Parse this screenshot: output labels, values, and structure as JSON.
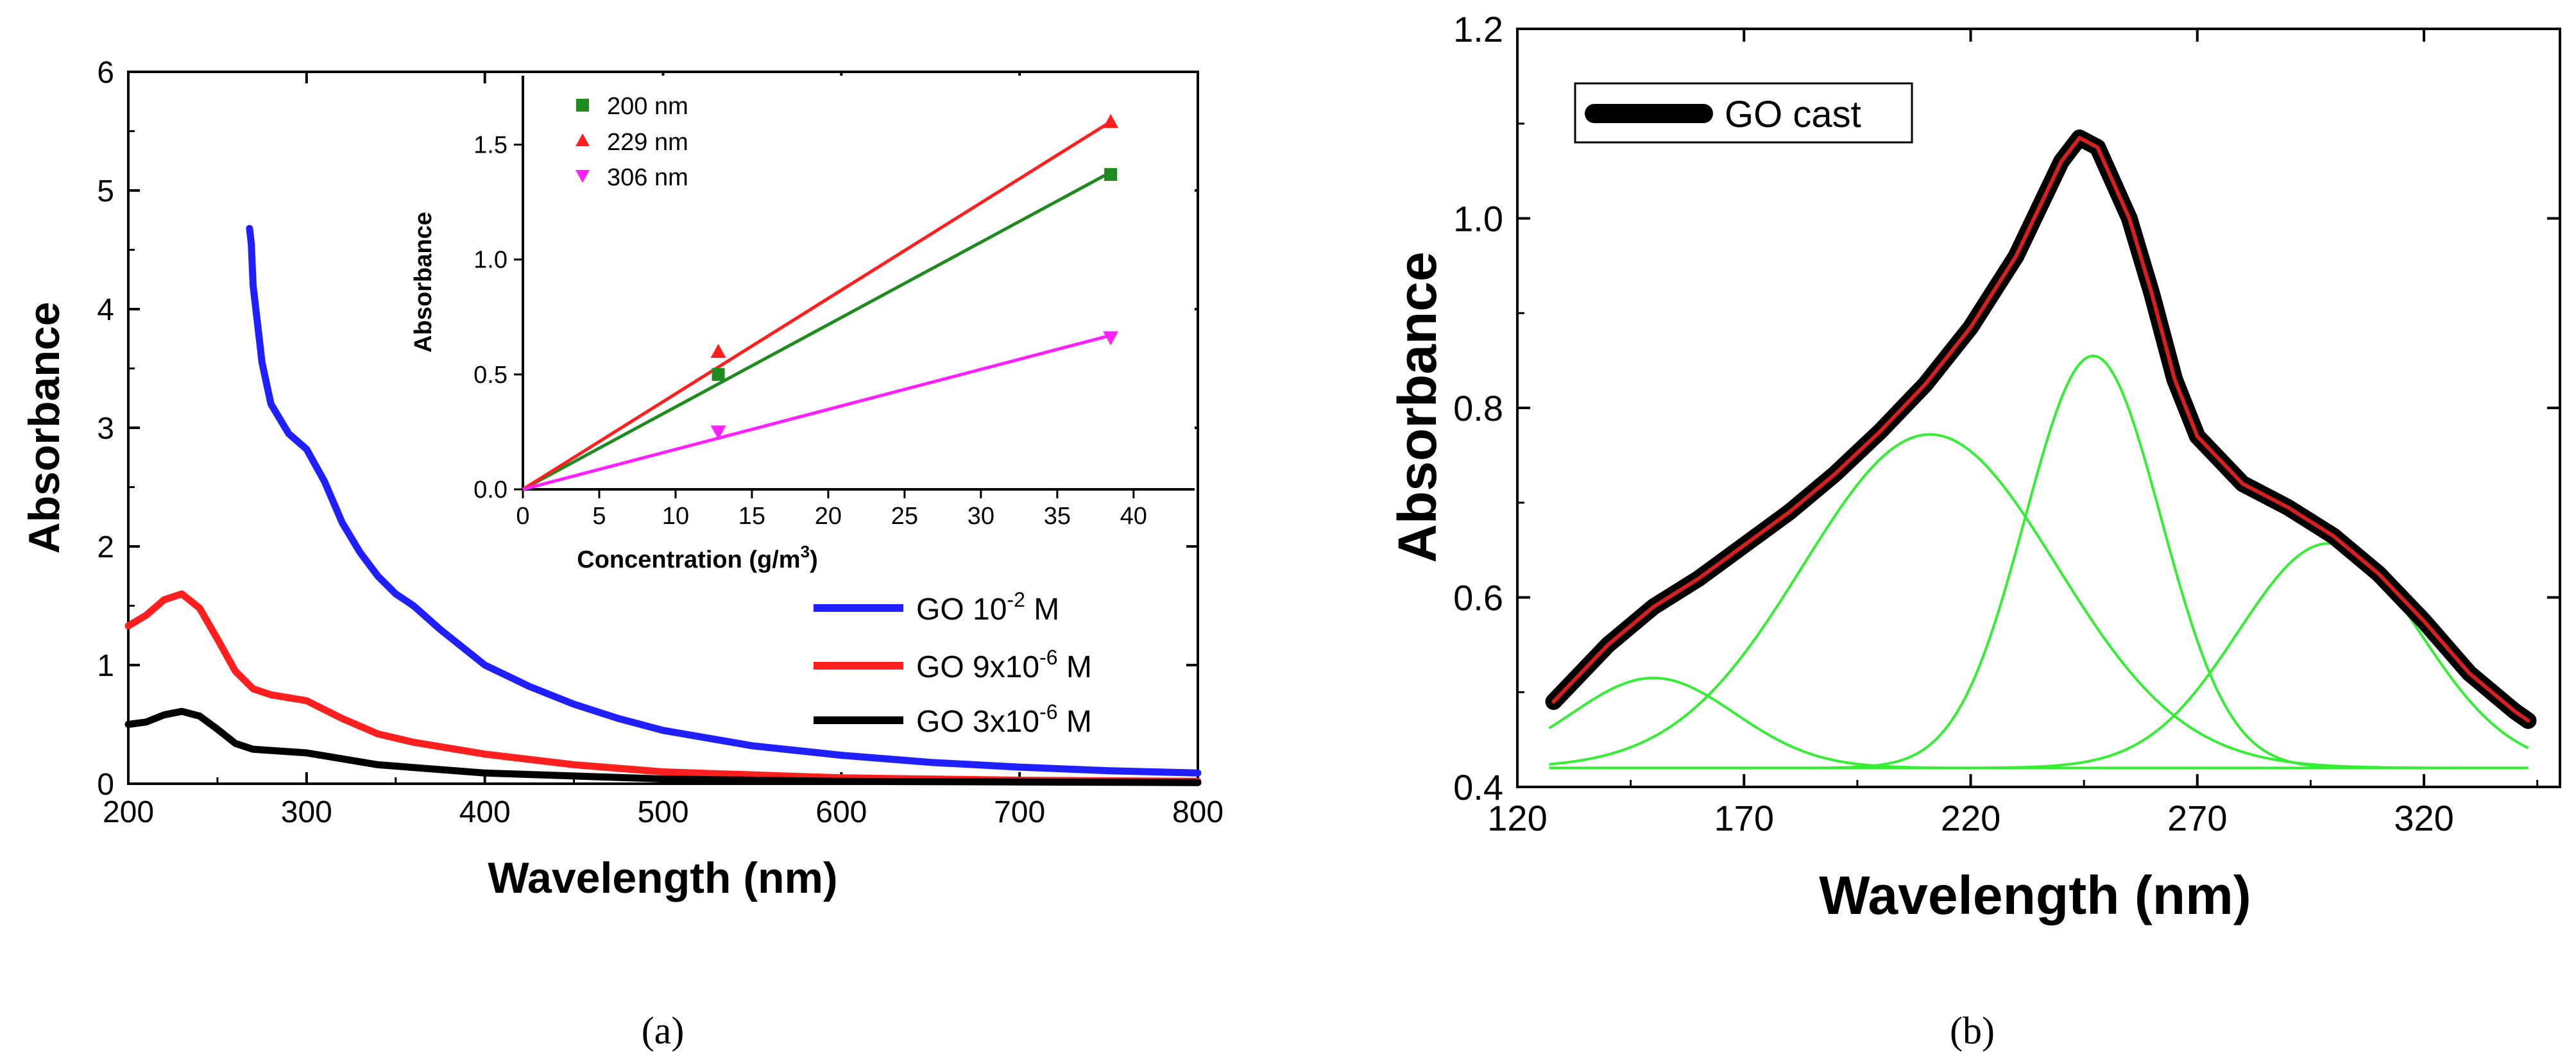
{
  "chart_data": [
    {
      "type": "line",
      "panel_label": "(a)",
      "xlabel": "Wavelength (nm)",
      "ylabel": "Absorbance",
      "xlim": [
        200,
        800
      ],
      "ylim": [
        0,
        6
      ],
      "xticks": [
        200,
        300,
        400,
        500,
        600,
        700,
        800
      ],
      "yticks": [
        0,
        1,
        2,
        3,
        4,
        5,
        6
      ],
      "legend_position": "middle-right",
      "series": [
        {
          "name": "GO 10-2 M",
          "legend": {
            "prefix": "GO 10",
            "sup": "-2",
            "suffix": " M"
          },
          "color": "#1f1fff",
          "points": [
            [
              268,
              4.68
            ],
            [
              269,
              4.55
            ],
            [
              270,
              4.2
            ],
            [
              275,
              3.55
            ],
            [
              280,
              3.2
            ],
            [
              290,
              2.95
            ],
            [
              300,
              2.82
            ],
            [
              310,
              2.55
            ],
            [
              320,
              2.2
            ],
            [
              330,
              1.95
            ],
            [
              340,
              1.75
            ],
            [
              350,
              1.6
            ],
            [
              360,
              1.5
            ],
            [
              375,
              1.3
            ],
            [
              400,
              1.0
            ],
            [
              425,
              0.82
            ],
            [
              450,
              0.67
            ],
            [
              475,
              0.55
            ],
            [
              500,
              0.45
            ],
            [
              550,
              0.32
            ],
            [
              600,
              0.24
            ],
            [
              650,
              0.18
            ],
            [
              700,
              0.14
            ],
            [
              750,
              0.11
            ],
            [
              800,
              0.09
            ]
          ]
        },
        {
          "name": "GO 9x10-6 M",
          "legend": {
            "prefix": "GO  9x10",
            "sup": "-6",
            "suffix": " M"
          },
          "color": "#ff1f1f",
          "points": [
            [
              200,
              1.33
            ],
            [
              210,
              1.42
            ],
            [
              220,
              1.55
            ],
            [
              230,
              1.6
            ],
            [
              240,
              1.48
            ],
            [
              250,
              1.22
            ],
            [
              260,
              0.95
            ],
            [
              270,
              0.8
            ],
            [
              280,
              0.75
            ],
            [
              300,
              0.7
            ],
            [
              320,
              0.55
            ],
            [
              340,
              0.42
            ],
            [
              360,
              0.35
            ],
            [
              400,
              0.25
            ],
            [
              450,
              0.16
            ],
            [
              500,
              0.1
            ],
            [
              600,
              0.05
            ],
            [
              700,
              0.03
            ],
            [
              800,
              0.02
            ]
          ]
        },
        {
          "name": "GO 3x10-6 M",
          "legend": {
            "prefix": "GO  3x10",
            "sup": "-6",
            "suffix": " M"
          },
          "color": "#000000",
          "points": [
            [
              200,
              0.5
            ],
            [
              210,
              0.52
            ],
            [
              220,
              0.58
            ],
            [
              230,
              0.61
            ],
            [
              240,
              0.57
            ],
            [
              250,
              0.46
            ],
            [
              260,
              0.34
            ],
            [
              270,
              0.29
            ],
            [
              300,
              0.26
            ],
            [
              340,
              0.16
            ],
            [
              400,
              0.09
            ],
            [
              500,
              0.04
            ],
            [
              600,
              0.02
            ],
            [
              800,
              0.01
            ]
          ]
        }
      ],
      "inset": {
        "type": "scatter",
        "xlabel": "Concentration (g/m",
        "xlabel_sup": "3",
        "xlabel_end": ")",
        "ylabel": "Absorbance",
        "xlim": [
          0,
          44
        ],
        "ylim": [
          0,
          1.8
        ],
        "xticks": [
          0,
          5,
          10,
          15,
          20,
          25,
          30,
          35,
          40
        ],
        "yticks": [
          0.0,
          0.5,
          1.0,
          1.5
        ],
        "series": [
          {
            "name": "200 nm",
            "marker": "square",
            "color": "#1f8a1f",
            "points": [
              [
                12.8,
                0.5
              ],
              [
                38.5,
                1.37
              ]
            ],
            "fit": [
              [
                0,
                0
              ],
              [
                38.5,
                1.38
              ]
            ]
          },
          {
            "name": "229 nm",
            "marker": "triangle-up",
            "color": "#ff1f1f",
            "points": [
              [
                12.8,
                0.6
              ],
              [
                38.5,
                1.6
              ]
            ],
            "fit": [
              [
                0,
                0
              ],
              [
                38.5,
                1.6
              ]
            ]
          },
          {
            "name": "306 nm",
            "marker": "triangle-down",
            "color": "#ff1fff",
            "points": [
              [
                12.8,
                0.25
              ],
              [
                38.5,
                0.66
              ]
            ],
            "fit": [
              [
                0,
                0
              ],
              [
                38.5,
                0.67
              ]
            ]
          }
        ]
      }
    },
    {
      "type": "line",
      "panel_label": "(b)",
      "xlabel": "Wavelength (nm)",
      "ylabel": "Absorbance",
      "xlim": [
        120,
        350
      ],
      "ylim": [
        0.4,
        1.2
      ],
      "xticks": [
        120,
        170,
        220,
        270,
        320
      ],
      "yticks": [
        "0.4",
        "0.6",
        "0.8",
        "1.0",
        "1.2"
      ],
      "legend": [
        "GO cast"
      ],
      "legend_position": "top-left",
      "baseline": 0.42,
      "gaussian_components": [
        {
          "center": 150,
          "height": 0.515,
          "sigma": 18
        },
        {
          "center": 211,
          "height": 0.772,
          "sigma": 28
        },
        {
          "center": 247,
          "height": 0.855,
          "sigma": 15
        },
        {
          "center": 299,
          "height": 0.657,
          "sigma": 20
        }
      ],
      "measured_points": [
        [
          128,
          0.49
        ],
        [
          135,
          0.525
        ],
        [
          140,
          0.55
        ],
        [
          150,
          0.59
        ],
        [
          160,
          0.62
        ],
        [
          170,
          0.655
        ],
        [
          180,
          0.69
        ],
        [
          190,
          0.73
        ],
        [
          200,
          0.775
        ],
        [
          210,
          0.825
        ],
        [
          220,
          0.885
        ],
        [
          230,
          0.96
        ],
        [
          235,
          1.01
        ],
        [
          240,
          1.06
        ],
        [
          244,
          1.085
        ],
        [
          248,
          1.075
        ],
        [
          255,
          1.0
        ],
        [
          260,
          0.92
        ],
        [
          265,
          0.83
        ],
        [
          270,
          0.77
        ],
        [
          280,
          0.72
        ],
        [
          290,
          0.695
        ],
        [
          300,
          0.665
        ],
        [
          310,
          0.625
        ],
        [
          320,
          0.575
        ],
        [
          330,
          0.52
        ],
        [
          340,
          0.48
        ],
        [
          343,
          0.47
        ]
      ],
      "colors": {
        "measured": "#000000",
        "fit": "#d62020",
        "components": "#33ee33"
      }
    }
  ]
}
